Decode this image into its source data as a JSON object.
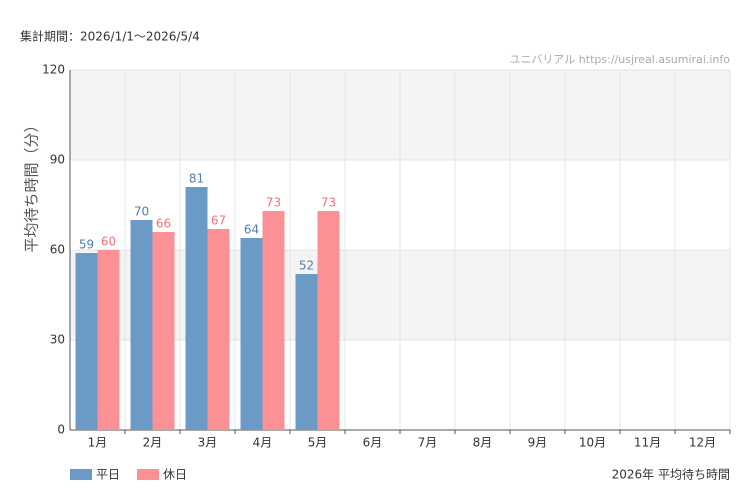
{
  "chart_data": {
    "type": "bar",
    "period": "集計期間：2026/1/1〜2026/5/4",
    "source": "ユニバリアル  https://usjreal.asumirai.info",
    "y_label": "平均待ち時間（分）",
    "caption": "2026年 平均待ち時間",
    "categories": [
      "1月",
      "2月",
      "3月",
      "4月",
      "5月",
      "6月",
      "7月",
      "8月",
      "9月",
      "10月",
      "11月",
      "12月"
    ],
    "series": [
      {
        "name": "平日",
        "color": "#6b9ac6",
        "label_color": "#4f7fb0",
        "values": [
          59,
          70,
          81,
          64,
          52,
          null,
          null,
          null,
          null,
          null,
          null,
          null
        ]
      },
      {
        "name": "休日",
        "color": "#fb9095",
        "label_color": "#f0727a",
        "values": [
          60,
          66,
          67,
          73,
          73,
          null,
          null,
          null,
          null,
          null,
          null,
          null
        ]
      }
    ],
    "ylim": [
      0,
      120
    ],
    "yticks": [
      0,
      30,
      60,
      90,
      120
    ],
    "grid": true
  }
}
